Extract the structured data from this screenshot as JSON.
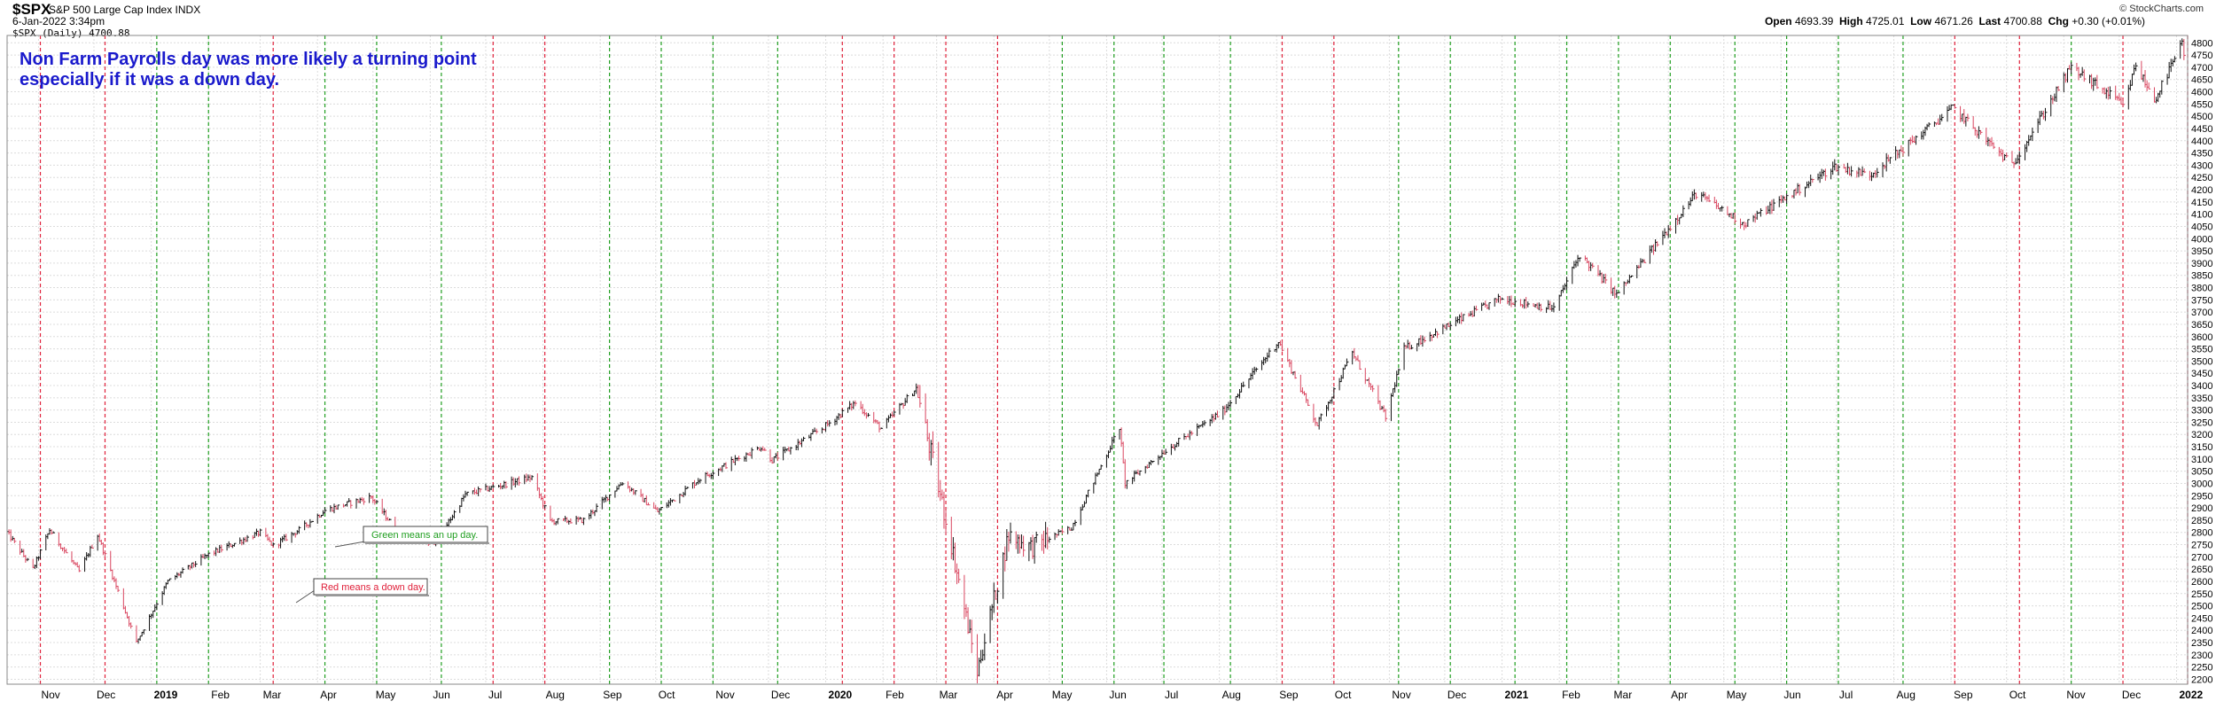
{
  "header": {
    "ticker": "$SPX",
    "ticker_name": "S&P 500 Large Cap Index  INDX",
    "date": "6-Jan-2022 3:34pm",
    "series": "$SPX (Daily) 4700.88",
    "logo": "© StockCharts.com",
    "quote": {
      "open_label": "Open",
      "open": "4693.39",
      "high_label": "High",
      "high": "4725.01",
      "low_label": "Low",
      "low": "4671.26",
      "last_label": "Last",
      "last": "4700.88",
      "chg_label": "Chg",
      "chg": "+0.30 (+0.01%)"
    }
  },
  "chart_data": {
    "type": "bar",
    "ohlc_style": "hlc-bars",
    "grid": true,
    "y_axis_side": "right",
    "ylim": [
      2180,
      4830
    ],
    "y_ticks": [
      2200,
      2250,
      2300,
      2350,
      2400,
      2450,
      2500,
      2550,
      2600,
      2650,
      2700,
      2750,
      2800,
      2850,
      2900,
      2950,
      3000,
      3050,
      3100,
      3150,
      3200,
      3250,
      3300,
      3350,
      3400,
      3450,
      3500,
      3550,
      3600,
      3650,
      3700,
      3750,
      3800,
      3850,
      3900,
      3950,
      4000,
      4050,
      4100,
      4150,
      4200,
      4250,
      4300,
      4350,
      4400,
      4450,
      4500,
      4550,
      4600,
      4650,
      4700,
      4750,
      4800
    ],
    "xlim": [
      "2018-10-15",
      "2022-01-07"
    ],
    "x_ticks": [
      {
        "date": "2018-11-01",
        "label": "Nov",
        "bold": false
      },
      {
        "date": "2018-12-01",
        "label": "Dec",
        "bold": false
      },
      {
        "date": "2019-01-01",
        "label": "2019",
        "bold": true
      },
      {
        "date": "2019-02-01",
        "label": "Feb",
        "bold": false
      },
      {
        "date": "2019-03-01",
        "label": "Mar",
        "bold": false
      },
      {
        "date": "2019-04-01",
        "label": "Apr",
        "bold": false
      },
      {
        "date": "2019-05-01",
        "label": "May",
        "bold": false
      },
      {
        "date": "2019-06-01",
        "label": "Jun",
        "bold": false
      },
      {
        "date": "2019-07-01",
        "label": "Jul",
        "bold": false
      },
      {
        "date": "2019-08-01",
        "label": "Aug",
        "bold": false
      },
      {
        "date": "2019-09-01",
        "label": "Sep",
        "bold": false
      },
      {
        "date": "2019-10-01",
        "label": "Oct",
        "bold": false
      },
      {
        "date": "2019-11-01",
        "label": "Nov",
        "bold": false
      },
      {
        "date": "2019-12-01",
        "label": "Dec",
        "bold": false
      },
      {
        "date": "2020-01-01",
        "label": "2020",
        "bold": true
      },
      {
        "date": "2020-02-01",
        "label": "Feb",
        "bold": false
      },
      {
        "date": "2020-03-01",
        "label": "Mar",
        "bold": false
      },
      {
        "date": "2020-04-01",
        "label": "Apr",
        "bold": false
      },
      {
        "date": "2020-05-01",
        "label": "May",
        "bold": false
      },
      {
        "date": "2020-06-01",
        "label": "Jun",
        "bold": false
      },
      {
        "date": "2020-07-01",
        "label": "Jul",
        "bold": false
      },
      {
        "date": "2020-08-01",
        "label": "Aug",
        "bold": false
      },
      {
        "date": "2020-09-01",
        "label": "Sep",
        "bold": false
      },
      {
        "date": "2020-10-01",
        "label": "Oct",
        "bold": false
      },
      {
        "date": "2020-11-01",
        "label": "Nov",
        "bold": false
      },
      {
        "date": "2020-12-01",
        "label": "Dec",
        "bold": false
      },
      {
        "date": "2021-01-01",
        "label": "2021",
        "bold": true
      },
      {
        "date": "2021-02-01",
        "label": "Feb",
        "bold": false
      },
      {
        "date": "2021-03-01",
        "label": "Mar",
        "bold": false
      },
      {
        "date": "2021-04-01",
        "label": "Apr",
        "bold": false
      },
      {
        "date": "2021-05-01",
        "label": "May",
        "bold": false
      },
      {
        "date": "2021-06-01",
        "label": "Jun",
        "bold": false
      },
      {
        "date": "2021-07-01",
        "label": "Jul",
        "bold": false
      },
      {
        "date": "2021-08-01",
        "label": "Aug",
        "bold": false
      },
      {
        "date": "2021-09-01",
        "label": "Sep",
        "bold": false
      },
      {
        "date": "2021-10-01",
        "label": "Oct",
        "bold": false
      },
      {
        "date": "2021-11-01",
        "label": "Nov",
        "bold": false
      },
      {
        "date": "2021-12-01",
        "label": "Dec",
        "bold": false
      },
      {
        "date": "2022-01-01",
        "label": "2022",
        "bold": true
      }
    ],
    "price_path": [
      [
        "2018-10-15",
        2800
      ],
      [
        "2018-10-29",
        2650
      ],
      [
        "2018-11-07",
        2810
      ],
      [
        "2018-11-23",
        2640
      ],
      [
        "2018-12-03",
        2790
      ],
      [
        "2018-12-24",
        2350
      ],
      [
        "2019-01-10",
        2600
      ],
      [
        "2019-02-01",
        2710
      ],
      [
        "2019-03-01",
        2800
      ],
      [
        "2019-03-08",
        2745
      ],
      [
        "2019-03-22",
        2810
      ],
      [
        "2019-04-05",
        2890
      ],
      [
        "2019-04-30",
        2945
      ],
      [
        "2019-05-13",
        2815
      ],
      [
        "2019-06-03",
        2745
      ],
      [
        "2019-06-20",
        2955
      ],
      [
        "2019-07-26",
        3025
      ],
      [
        "2019-08-05",
        2845
      ],
      [
        "2019-08-23",
        2850
      ],
      [
        "2019-09-13",
        3005
      ],
      [
        "2019-10-02",
        2885
      ],
      [
        "2019-10-25",
        3020
      ],
      [
        "2019-11-27",
        3150
      ],
      [
        "2019-12-03",
        3095
      ],
      [
        "2019-12-31",
        3230
      ],
      [
        "2020-01-17",
        3330
      ],
      [
        "2020-01-31",
        3225
      ],
      [
        "2020-02-19",
        3390
      ],
      [
        "2020-03-09",
        2750
      ],
      [
        "2020-03-23",
        2230
      ],
      [
        "2020-04-09",
        2790
      ],
      [
        "2020-04-21",
        2740
      ],
      [
        "2020-05-13",
        2820
      ],
      [
        "2020-06-08",
        3230
      ],
      [
        "2020-06-11",
        3000
      ],
      [
        "2020-07-02",
        3130
      ],
      [
        "2020-08-03",
        3295
      ],
      [
        "2020-09-02",
        3580
      ],
      [
        "2020-09-23",
        3240
      ],
      [
        "2020-10-12",
        3535
      ],
      [
        "2020-10-30",
        3270
      ],
      [
        "2020-11-09",
        3550
      ],
      [
        "2020-12-31",
        3755
      ],
      [
        "2021-01-29",
        3715
      ],
      [
        "2021-02-12",
        3935
      ],
      [
        "2021-03-04",
        3770
      ],
      [
        "2021-04-16",
        4185
      ],
      [
        "2021-05-12",
        4060
      ],
      [
        "2021-06-30",
        4295
      ],
      [
        "2021-07-19",
        4260
      ],
      [
        "2021-08-31",
        4520
      ],
      [
        "2021-09-02",
        4535
      ],
      [
        "2021-10-04",
        4300
      ],
      [
        "2021-11-05",
        4700
      ],
      [
        "2021-11-30",
        4565
      ],
      [
        "2021-12-03",
        4535
      ],
      [
        "2021-12-10",
        4710
      ],
      [
        "2021-12-20",
        4565
      ],
      [
        "2022-01-04",
        4795
      ],
      [
        "2022-01-06",
        4701
      ]
    ],
    "nfp_days": [
      {
        "date": "2018-11-02",
        "direction": "down"
      },
      {
        "date": "2018-12-07",
        "direction": "down"
      },
      {
        "date": "2019-01-04",
        "direction": "up"
      },
      {
        "date": "2019-02-01",
        "direction": "up"
      },
      {
        "date": "2019-03-08",
        "direction": "down"
      },
      {
        "date": "2019-04-05",
        "direction": "up"
      },
      {
        "date": "2019-05-03",
        "direction": "up"
      },
      {
        "date": "2019-06-07",
        "direction": "up"
      },
      {
        "date": "2019-07-05",
        "direction": "down"
      },
      {
        "date": "2019-08-02",
        "direction": "down"
      },
      {
        "date": "2019-09-06",
        "direction": "up"
      },
      {
        "date": "2019-10-04",
        "direction": "up"
      },
      {
        "date": "2019-11-01",
        "direction": "up"
      },
      {
        "date": "2019-12-06",
        "direction": "up"
      },
      {
        "date": "2020-01-10",
        "direction": "down"
      },
      {
        "date": "2020-02-07",
        "direction": "down"
      },
      {
        "date": "2020-03-06",
        "direction": "down"
      },
      {
        "date": "2020-04-03",
        "direction": "down"
      },
      {
        "date": "2020-05-08",
        "direction": "up"
      },
      {
        "date": "2020-06-05",
        "direction": "up"
      },
      {
        "date": "2020-07-02",
        "direction": "up"
      },
      {
        "date": "2020-08-07",
        "direction": "up"
      },
      {
        "date": "2020-09-04",
        "direction": "down"
      },
      {
        "date": "2020-10-02",
        "direction": "down"
      },
      {
        "date": "2020-11-06",
        "direction": "up"
      },
      {
        "date": "2020-12-04",
        "direction": "up"
      },
      {
        "date": "2021-01-08",
        "direction": "up"
      },
      {
        "date": "2021-02-05",
        "direction": "up"
      },
      {
        "date": "2021-03-05",
        "direction": "up"
      },
      {
        "date": "2021-04-02",
        "direction": "up"
      },
      {
        "date": "2021-05-07",
        "direction": "up"
      },
      {
        "date": "2021-06-04",
        "direction": "up"
      },
      {
        "date": "2021-07-02",
        "direction": "up"
      },
      {
        "date": "2021-08-06",
        "direction": "up"
      },
      {
        "date": "2021-09-03",
        "direction": "down"
      },
      {
        "date": "2021-10-08",
        "direction": "down"
      },
      {
        "date": "2021-11-05",
        "direction": "up"
      },
      {
        "date": "2021-12-03",
        "direction": "down"
      },
      {
        "date": "2022-01-07",
        "direction": "down"
      }
    ],
    "colors": {
      "up": "#1f9e1f",
      "down": "#e0203a",
      "bar_up": "#111111",
      "bar_down": "#d9455f",
      "grid": "#dcdcdc",
      "note": "#1a1acc"
    },
    "annotations": {
      "main_note_line1": "Non Farm Payrolls day was more likely a turning point",
      "main_note_line2": "especially if it was a down day.",
      "green_note": "Green means an up day.",
      "red_note": "Red means a down day."
    }
  }
}
